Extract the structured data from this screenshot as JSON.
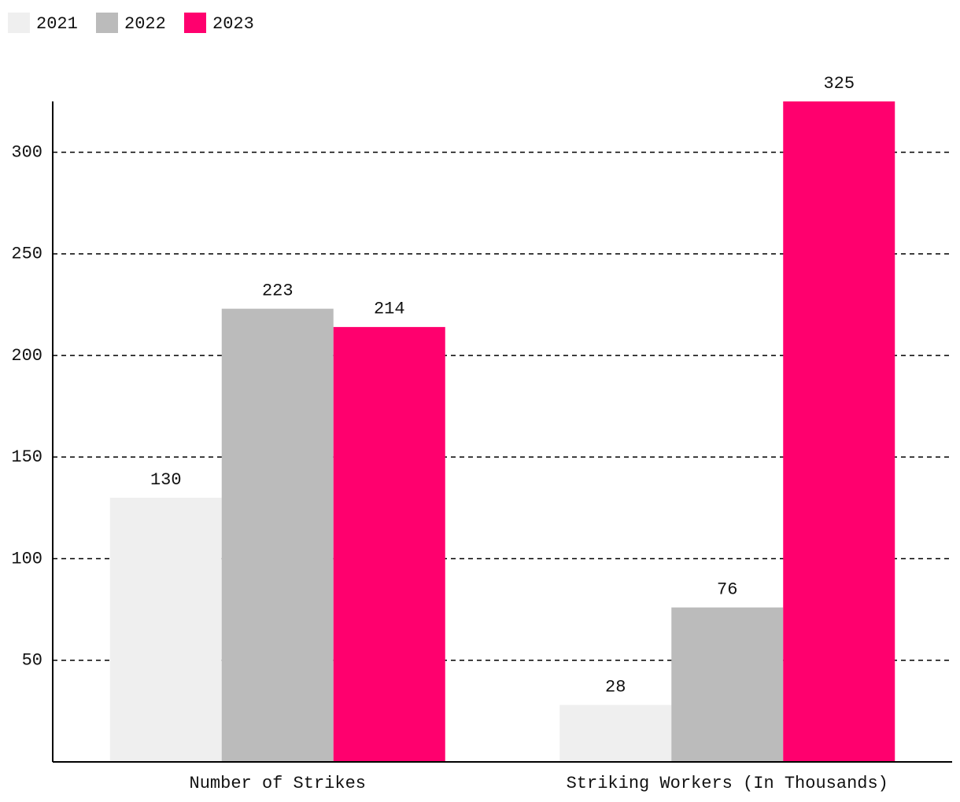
{
  "chart_data": {
    "type": "bar",
    "categories": [
      "Number of Strikes",
      "Striking Workers (In Thousands)"
    ],
    "series": [
      {
        "name": "2021",
        "color": "#efefef",
        "values": [
          130,
          28
        ]
      },
      {
        "name": "2022",
        "color": "#bbbbbb",
        "values": [
          223,
          76
        ]
      },
      {
        "name": "2023",
        "color": "#ff006e",
        "values": [
          214,
          325
        ]
      }
    ],
    "ylim": [
      0,
      325
    ],
    "yticks": [
      50,
      100,
      150,
      200,
      250,
      300
    ],
    "grid": true,
    "legend": "top-left"
  }
}
